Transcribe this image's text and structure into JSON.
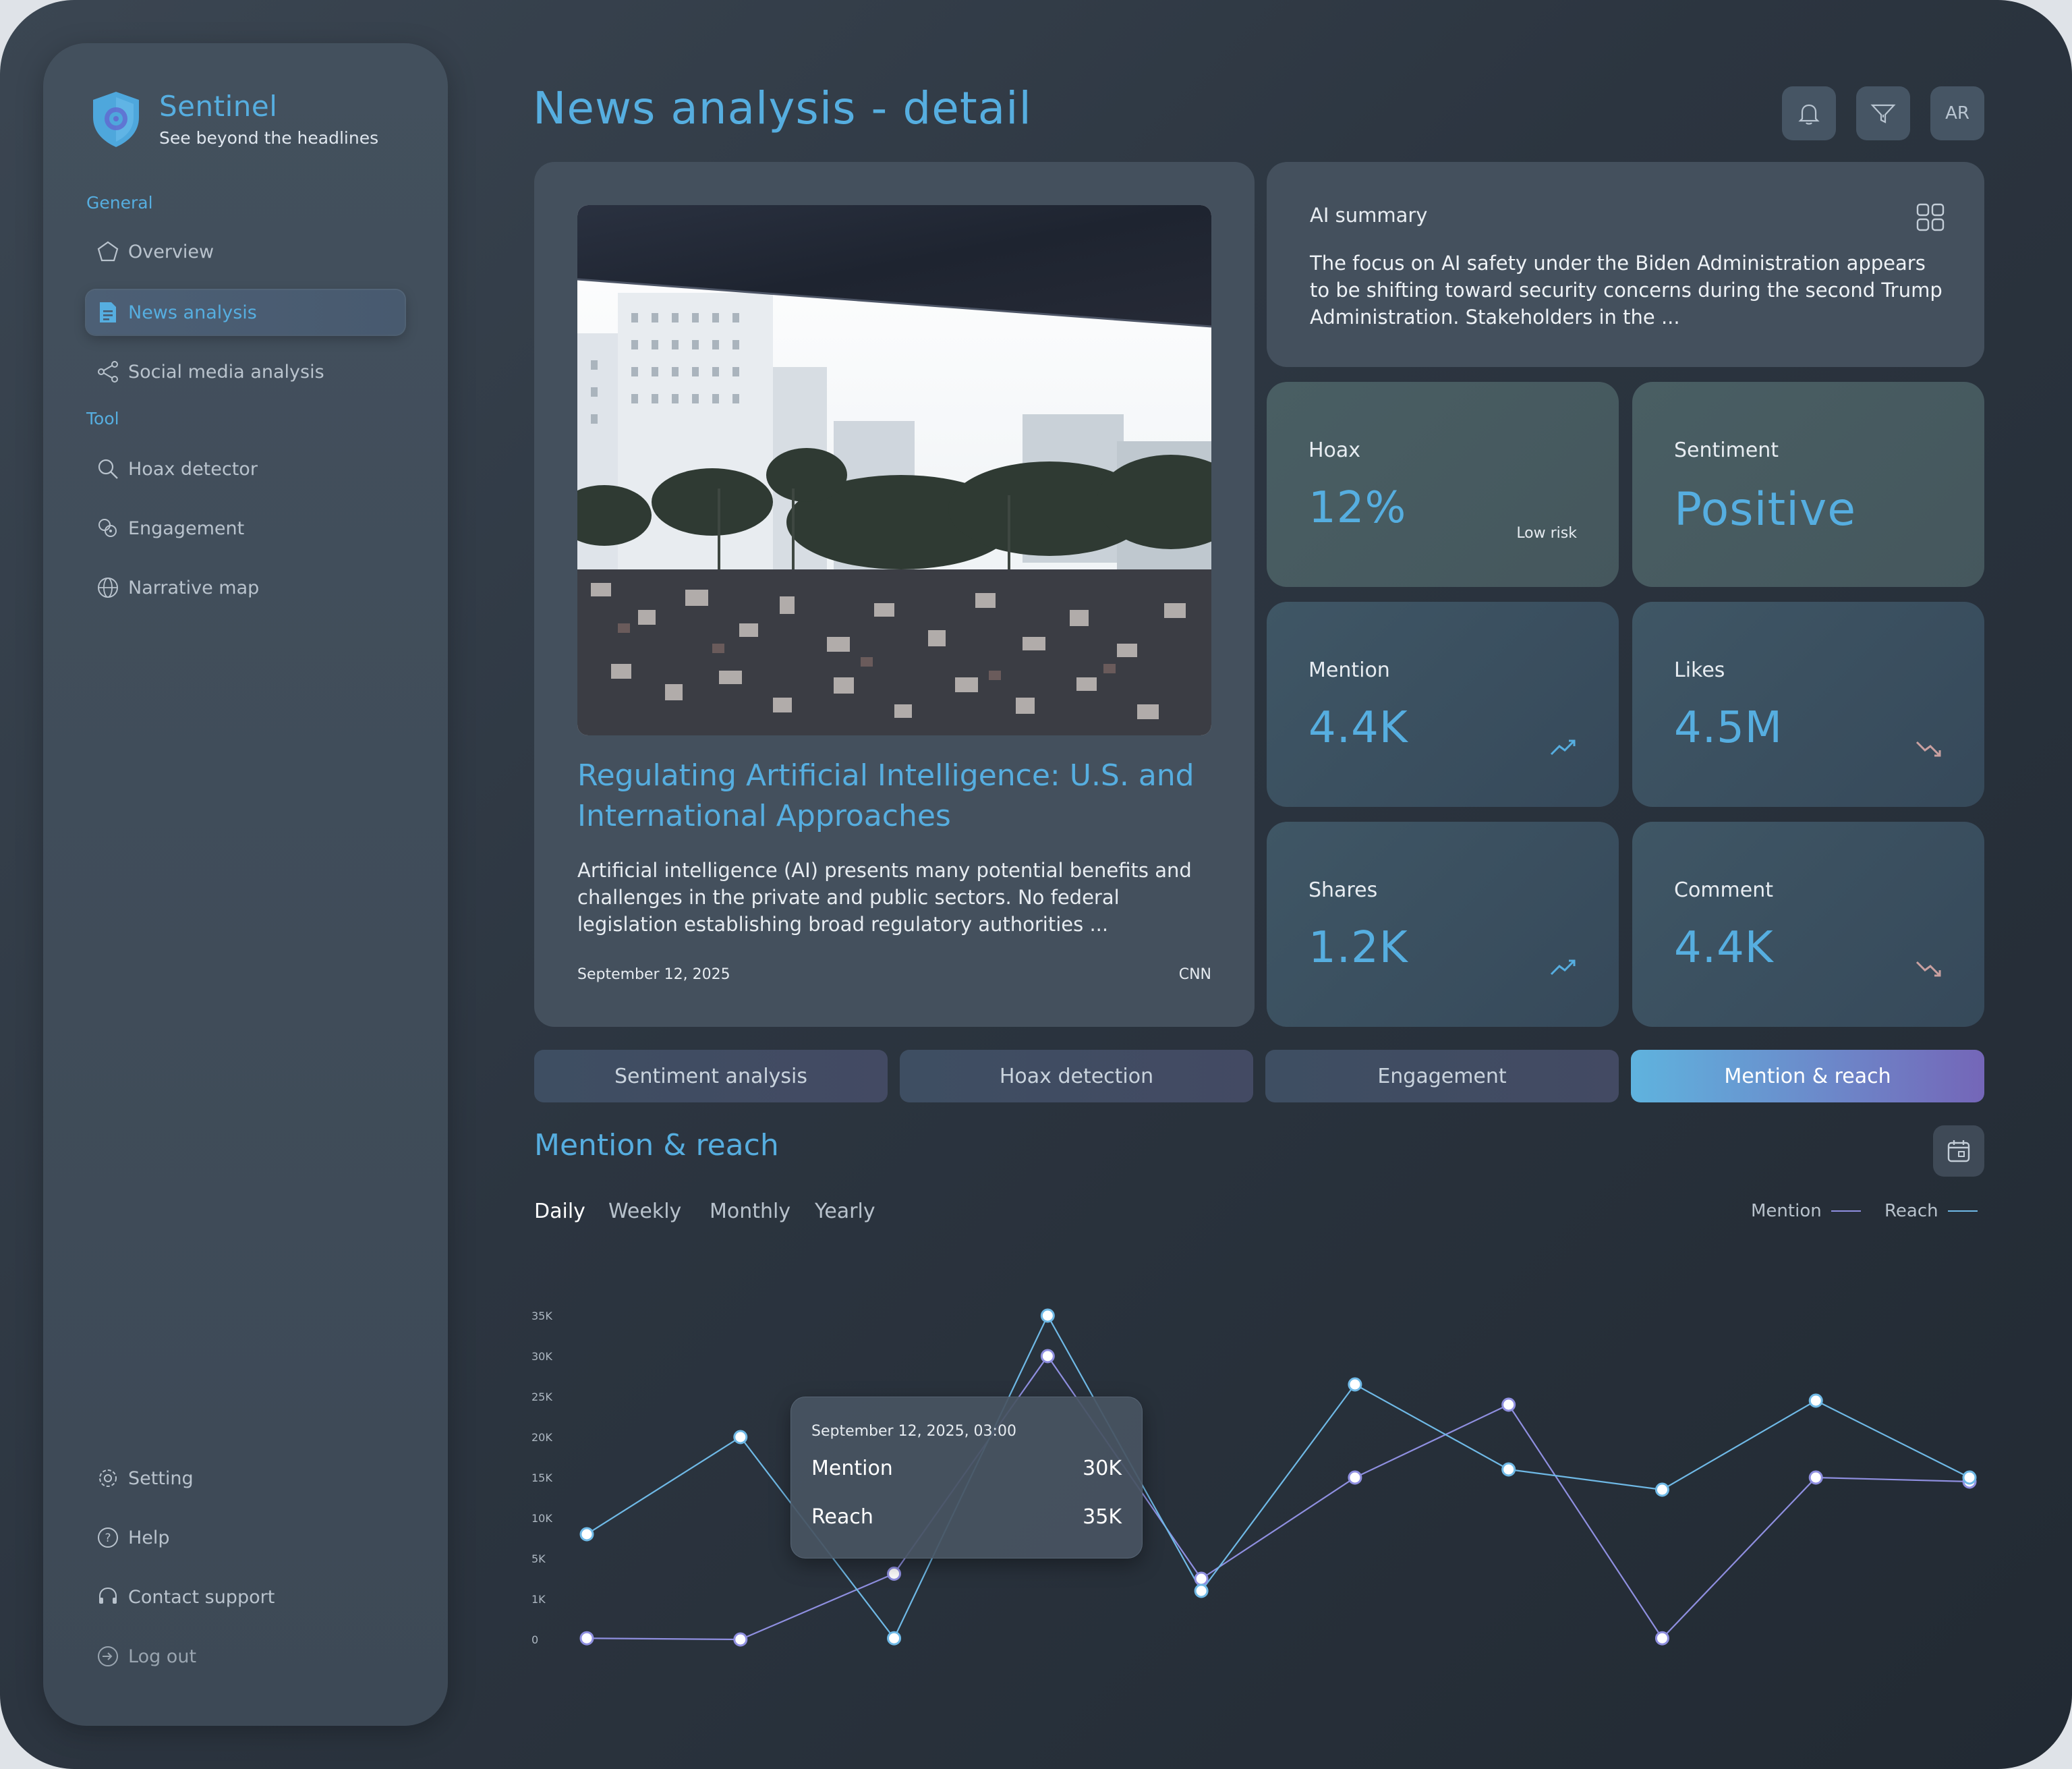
{
  "brand": {
    "name": "Sentinel",
    "tagline": "See beyond the headlines"
  },
  "sidebar": {
    "sections": [
      {
        "label": "General",
        "items": [
          {
            "label": "Overview",
            "icon": "pentagon-icon"
          },
          {
            "label": "News analysis",
            "icon": "document-icon",
            "active": true
          },
          {
            "label": "Social media analysis",
            "icon": "share-icon"
          }
        ]
      },
      {
        "label": "Tool",
        "items": [
          {
            "label": "Hoax detector",
            "icon": "search-icon"
          },
          {
            "label": "Engagement",
            "icon": "engagement-icon"
          },
          {
            "label": "Narrative map",
            "icon": "globe-icon"
          }
        ]
      }
    ],
    "footer": [
      {
        "label": "Setting",
        "icon": "gear-icon"
      },
      {
        "label": "Help",
        "icon": "help-icon"
      },
      {
        "label": "Contact support",
        "icon": "headset-icon"
      },
      {
        "label": "Log out",
        "icon": "logout-icon"
      }
    ]
  },
  "header": {
    "title": "News analysis - detail",
    "avatar_initials": "AR"
  },
  "article": {
    "headline": "Regulating Artificial Intelligence: U.S. and International Approaches",
    "description": "Artificial intelligence (AI) presents many potential benefits and challenges in the private and public sectors. No federal legislation establishing broad regulatory authorities ...",
    "date": "September 12, 2025",
    "source": "CNN"
  },
  "ai_summary": {
    "title": "AI summary",
    "body": "The focus on AI safety under the Biden Administration appears to be shifting toward security concerns during the second Trump Administration. Stakeholders in the ..."
  },
  "stats": {
    "hoax": {
      "label": "Hoax",
      "value": "12%",
      "note": "Low risk"
    },
    "sentiment": {
      "label": "Sentiment",
      "value": "Positive"
    },
    "mention": {
      "label": "Mention",
      "value": "4.4K",
      "trend": "up"
    },
    "likes": {
      "label": "Likes",
      "value": "4.5M",
      "trend": "down"
    },
    "shares": {
      "label": "Shares",
      "value": "1.2K",
      "trend": "up"
    },
    "comment": {
      "label": "Comment",
      "value": "4.4K",
      "trend": "down"
    }
  },
  "tabs": [
    "Sentiment analysis",
    "Hoax detection",
    "Engagement",
    "Mention & reach"
  ],
  "active_tab": 3,
  "chart_section": {
    "title": "Mention & reach",
    "periods": [
      "Daily",
      "Weekly",
      "Monthly",
      "Yearly"
    ],
    "active_period": 0,
    "legend": [
      "Mention",
      "Reach"
    ]
  },
  "tooltip": {
    "date": "September 12, 2025, 03:00",
    "rows": [
      {
        "label": "Mention",
        "value": "30K"
      },
      {
        "label": "Reach",
        "value": "35K"
      }
    ]
  },
  "colors": {
    "accent": "#56aee0",
    "mention_line": "#8f8fe0",
    "reach_line": "#6fb9e6"
  },
  "chart_data": {
    "type": "line",
    "y_ticks": [
      "0",
      "1K",
      "5K",
      "10K",
      "15K",
      "20K",
      "25K",
      "30K",
      "35K"
    ],
    "x": [
      0,
      1,
      2,
      3,
      4,
      5,
      6,
      7,
      8,
      9
    ],
    "series": [
      {
        "name": "Mention",
        "values": [
          0.03,
          0.0,
          3.5,
          30,
          3.0,
          15,
          24,
          0.03,
          15,
          14.5
        ]
      },
      {
        "name": "Reach",
        "values": [
          8,
          20,
          0.03,
          35,
          1.8,
          26.5,
          16,
          13.5,
          24.5,
          15
        ]
      }
    ]
  }
}
